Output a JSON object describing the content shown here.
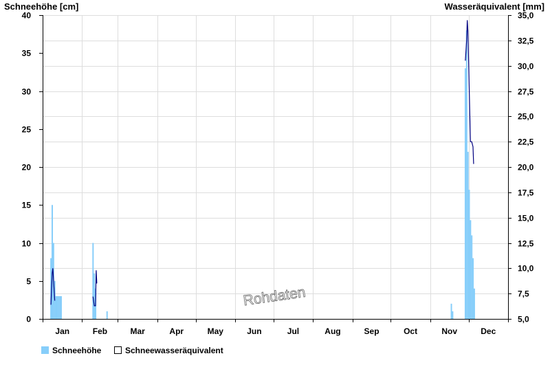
{
  "chart_data": {
    "type": "bar",
    "ylabel_left": "Schneehöhe [cm]",
    "ylabel_right": "Wasseräquivalent [mm]",
    "ylim_left": [
      0,
      40
    ],
    "ylim_right": [
      5.0,
      35.0
    ],
    "left_ticks": [
      "0",
      "5",
      "10",
      "15",
      "20",
      "25",
      "30",
      "35",
      "40"
    ],
    "right_ticks": [
      "5,0",
      "7,5",
      "10,0",
      "12,5",
      "15,0",
      "17,5",
      "20,0",
      "22,5",
      "25,0",
      "27,5",
      "30,0",
      "32,5",
      "35,0"
    ],
    "months": [
      "Jan",
      "Feb",
      "Mar",
      "Apr",
      "May",
      "Jun",
      "Jul",
      "Aug",
      "Sep",
      "Oct",
      "Nov",
      "Dec"
    ],
    "x_range_days": [
      1,
      365
    ],
    "grid": true,
    "legend_position": "bottom-left",
    "watermark": "Rohdaten",
    "colors": {
      "bars": "#87CEFA",
      "line": "#000080",
      "grid": "#dddddd"
    },
    "series": [
      {
        "name": "Schneehöhe",
        "type": "bar",
        "axis": "left",
        "points": [
          [
            7,
            8
          ],
          [
            8,
            15
          ],
          [
            9,
            10
          ],
          [
            10,
            5
          ],
          [
            11,
            3
          ],
          [
            12,
            3
          ],
          [
            13,
            3
          ],
          [
            14,
            3
          ],
          [
            15,
            3
          ],
          [
            40,
            10
          ],
          [
            41,
            6
          ],
          [
            42,
            4
          ],
          [
            51,
            1
          ],
          [
            321,
            2
          ],
          [
            322,
            1
          ],
          [
            332,
            33
          ],
          [
            333,
            38
          ],
          [
            334,
            22
          ],
          [
            335,
            17
          ],
          [
            336,
            13
          ],
          [
            337,
            11
          ],
          [
            338,
            8
          ],
          [
            339,
            4
          ]
        ]
      },
      {
        "name": "Schneewasseräquivalent",
        "type": "line",
        "axis": "right",
        "segments": [
          [
            [
              7,
              6.4
            ],
            [
              8,
              9.5
            ],
            [
              8.5,
              10.0
            ],
            [
              9,
              9.0
            ],
            [
              10,
              6.8
            ]
          ],
          [
            [
              40,
              7.2
            ],
            [
              41,
              6.3
            ],
            [
              42,
              6.3
            ],
            [
              42.5,
              9.8
            ],
            [
              43,
              8.5
            ]
          ],
          [
            [
              332,
              30.5
            ],
            [
              333,
              32.5
            ],
            [
              333.5,
              34.5
            ],
            [
              334,
              33.5
            ],
            [
              335,
              28.0
            ],
            [
              336,
              22.5
            ],
            [
              337,
              22.5
            ],
            [
              338,
              22.0
            ],
            [
              338.5,
              20.3
            ]
          ]
        ]
      }
    ]
  }
}
